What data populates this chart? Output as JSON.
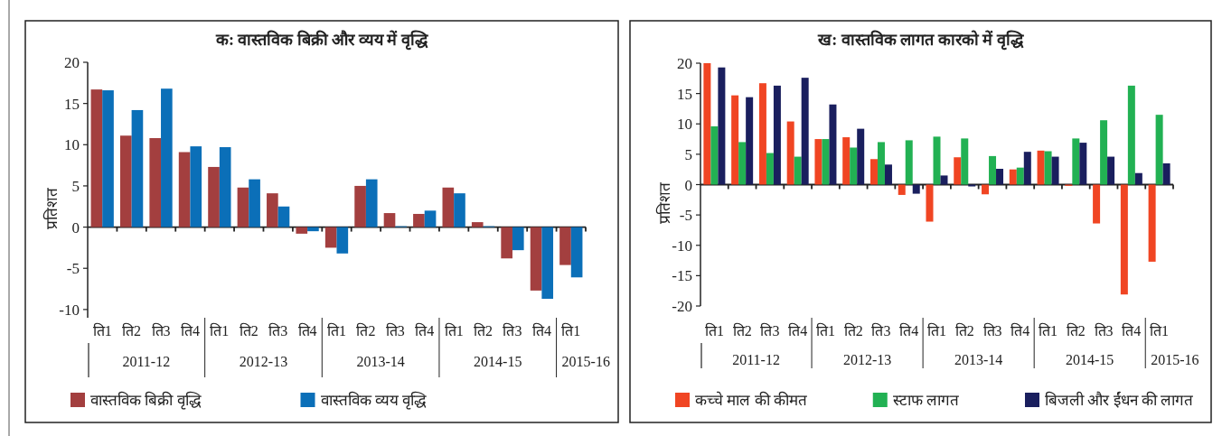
{
  "chart_data": [
    {
      "type": "bar",
      "title": "क: वास्तविक बिक्री और व्यय में वृद्धि",
      "ylabel": "प्रतिशत",
      "categories": [
        "ति1",
        "ति2",
        "ति3",
        "ति4",
        "ति1",
        "ति2",
        "ति3",
        "ति4",
        "ति1",
        "ति2",
        "ति3",
        "ति4",
        "ति1",
        "ति2",
        "ति3",
        "ति4",
        "ति1"
      ],
      "annotations": [
        "2011-12",
        "2012-13",
        "2013-14",
        "2014-15",
        "2015-16"
      ],
      "series": [
        {
          "name": "वास्तविक बिक्री वृद्धि",
          "color": "#a33f3f",
          "values": [
            16.7,
            11.1,
            10.8,
            9.1,
            7.3,
            4.8,
            4.1,
            -0.8,
            -2.5,
            5.0,
            1.7,
            1.6,
            4.8,
            0.6,
            -3.8,
            -7.7,
            -4.6
          ]
        },
        {
          "name": "वास्तविक व्यय वृद्धि",
          "color": "#0b6fb8",
          "values": [
            16.6,
            14.2,
            16.8,
            9.8,
            9.7,
            5.8,
            2.5,
            -0.5,
            -3.2,
            5.8,
            0.1,
            2.0,
            4.1,
            0.1,
            -2.8,
            -8.7,
            -6.1
          ]
        }
      ],
      "ylim": [
        -11,
        20
      ],
      "yticks": [
        -10,
        -5,
        0,
        5,
        10,
        15,
        20
      ],
      "legend": "bottom"
    },
    {
      "type": "bar",
      "title": "ख: वास्तविक लागत कारको में वृद्धि",
      "ylabel": "प्रतिशत",
      "categories": [
        "ति1",
        "ति2",
        "ति3",
        "ति4",
        "ति1",
        "ति2",
        "ति3",
        "ति4",
        "ति1",
        "ति2",
        "ति3",
        "ति4",
        "ति1",
        "ति2",
        "ति3",
        "ति4",
        "ति1"
      ],
      "annotations": [
        "2011-12",
        "2012-13",
        "2013-14",
        "2014-15",
        "2015-16"
      ],
      "series": [
        {
          "name": "कच्चे माल की कीमत",
          "color": "#f04523",
          "values": [
            20.0,
            14.7,
            16.7,
            10.4,
            7.5,
            7.8,
            4.2,
            -1.7,
            -6.1,
            4.5,
            -1.6,
            2.5,
            5.6,
            -0.2,
            -6.4,
            -18.1,
            -12.7
          ]
        },
        {
          "name": "स्टाफ लागत",
          "color": "#22b153",
          "values": [
            9.6,
            7.0,
            5.2,
            4.6,
            7.5,
            6.1,
            7.0,
            7.3,
            7.9,
            7.6,
            4.7,
            2.8,
            5.5,
            7.6,
            10.6,
            16.3,
            11.5
          ]
        },
        {
          "name": "बिजली और ईंधन की लागत",
          "color": "#1a1f5e",
          "values": [
            19.3,
            14.4,
            16.3,
            17.6,
            13.2,
            9.2,
            3.3,
            -1.5,
            1.5,
            -0.3,
            2.6,
            5.4,
            4.6,
            6.9,
            4.6,
            1.9,
            3.5
          ]
        }
      ],
      "ylim": [
        -20,
        20
      ],
      "yticks": [
        -20,
        -15,
        -10,
        -5,
        0,
        5,
        10,
        15,
        20
      ],
      "legend": "bottom"
    }
  ]
}
